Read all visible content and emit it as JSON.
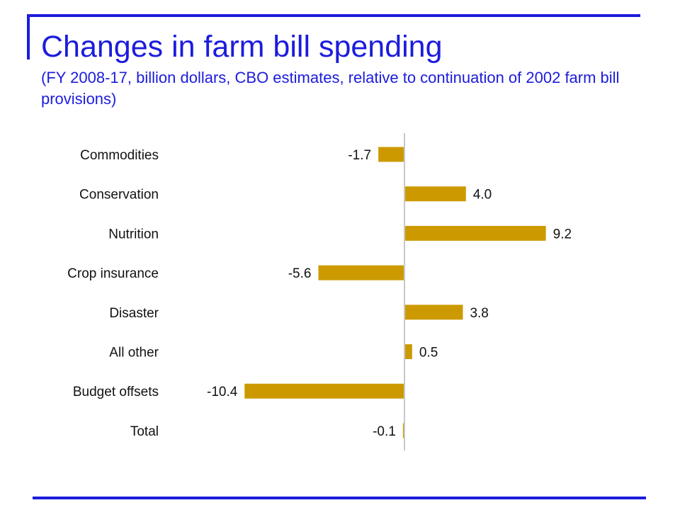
{
  "slide": {
    "title": "Changes in farm bill spending",
    "subtitle": "(FY 2008-17, billion dollars, CBO estimates, relative to continuation of 2002 farm bill provisions)",
    "accent_color": "#1c1cdc"
  },
  "chart_data": {
    "type": "bar",
    "orientation": "horizontal",
    "categories": [
      "Commodities",
      "Conservation",
      "Nutrition",
      "Crop insurance",
      "Disaster",
      "All other",
      "Budget offsets",
      "Total"
    ],
    "values": [
      -1.7,
      4.0,
      9.2,
      -5.6,
      3.8,
      0.5,
      -10.4,
      -0.1
    ],
    "data_labels": [
      "-1.7",
      "4.0",
      "9.2",
      "-5.6",
      "3.8",
      "0.5",
      "-10.4",
      "-0.1"
    ],
    "bar_color": "#cc9a00",
    "xlim": [
      -10.4,
      9.2
    ],
    "grid": false,
    "legend": "none"
  }
}
